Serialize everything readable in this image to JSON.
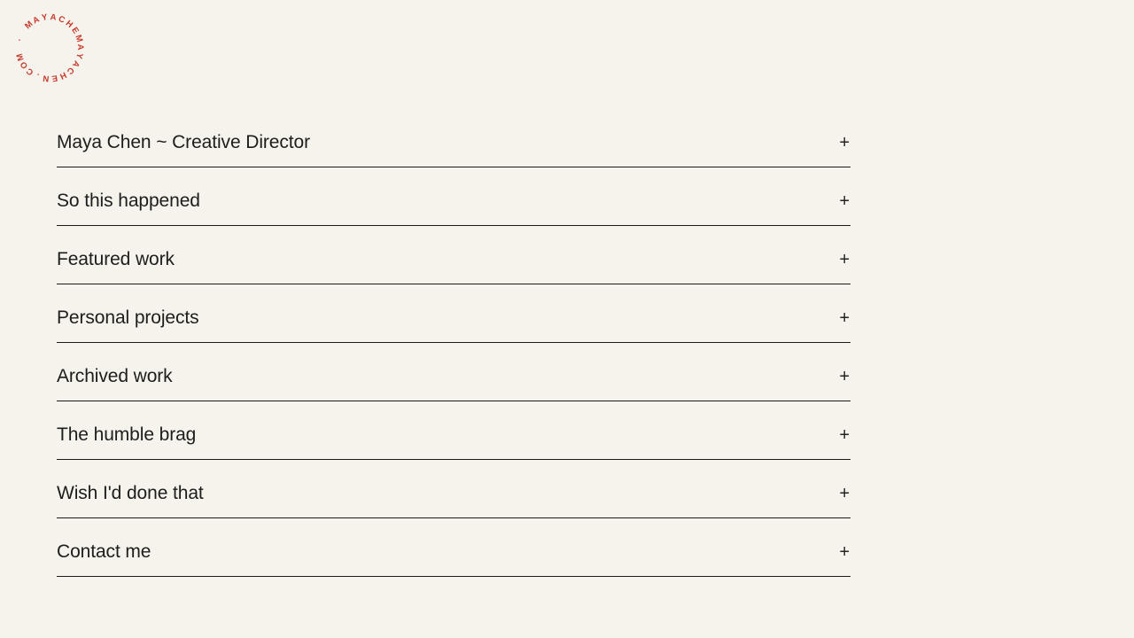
{
  "page": {
    "background": "#f6f3ec",
    "text_color": "#1d1d1c",
    "line_color": "#1a1a19"
  },
  "logo": {
    "circular_text": "· MAYACHEMAYACHEN.COM ",
    "color": "#c6382c",
    "start_angle_deg": -75
  },
  "accordion": {
    "toggle_glyph": "+",
    "items": [
      {
        "label": "Maya Chen ~ Creative Director"
      },
      {
        "label": "So this happened"
      },
      {
        "label": "Featured work"
      },
      {
        "label": "Personal projects"
      },
      {
        "label": "Archived work"
      },
      {
        "label": "The humble brag"
      },
      {
        "label": "Wish I'd done that"
      },
      {
        "label": "Contact me"
      }
    ]
  }
}
